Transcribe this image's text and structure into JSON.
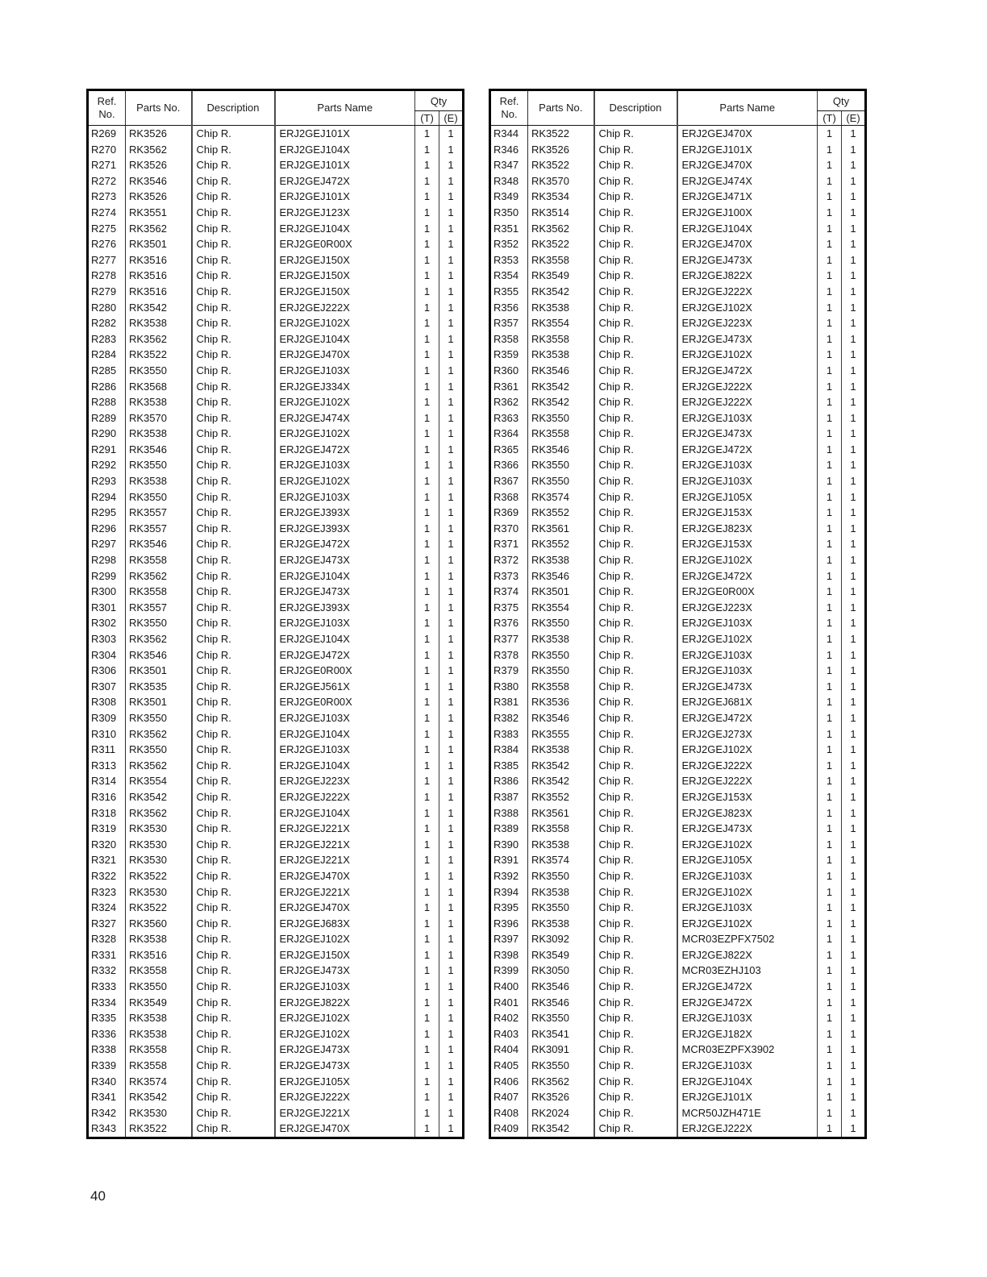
{
  "page": {
    "number": "40"
  },
  "headers": {
    "ref_line1": "Ref.",
    "ref_line2": "No.",
    "parts_no": "Parts No.",
    "description": "Description",
    "parts_name": "Parts Name",
    "qty": "Qty",
    "qty_t": "(T)",
    "qty_e": "(E)"
  },
  "tables": [
    {
      "rows": [
        [
          "R269",
          "RK3526",
          "Chip R.",
          "ERJ2GEJ101X",
          "1",
          "1"
        ],
        [
          "R270",
          "RK3562",
          "Chip R.",
          "ERJ2GEJ104X",
          "1",
          "1"
        ],
        [
          "R271",
          "RK3526",
          "Chip R.",
          "ERJ2GEJ101X",
          "1",
          "1"
        ],
        [
          "R272",
          "RK3546",
          "Chip R.",
          "ERJ2GEJ472X",
          "1",
          "1"
        ],
        [
          "R273",
          "RK3526",
          "Chip R.",
          "ERJ2GEJ101X",
          "1",
          "1"
        ],
        [
          "R274",
          "RK3551",
          "Chip R.",
          "ERJ2GEJ123X",
          "1",
          "1"
        ],
        [
          "R275",
          "RK3562",
          "Chip R.",
          "ERJ2GEJ104X",
          "1",
          "1"
        ],
        [
          "R276",
          "RK3501",
          "Chip R.",
          "ERJ2GE0R00X",
          "1",
          "1"
        ],
        [
          "R277",
          "RK3516",
          "Chip R.",
          "ERJ2GEJ150X",
          "1",
          "1"
        ],
        [
          "R278",
          "RK3516",
          "Chip R.",
          "ERJ2GEJ150X",
          "1",
          "1"
        ],
        [
          "R279",
          "RK3516",
          "Chip R.",
          "ERJ2GEJ150X",
          "1",
          "1"
        ],
        [
          "R280",
          "RK3542",
          "Chip R.",
          "ERJ2GEJ222X",
          "1",
          "1"
        ],
        [
          "R282",
          "RK3538",
          "Chip R.",
          "ERJ2GEJ102X",
          "1",
          "1"
        ],
        [
          "R283",
          "RK3562",
          "Chip R.",
          "ERJ2GEJ104X",
          "1",
          "1"
        ],
        [
          "R284",
          "RK3522",
          "Chip R.",
          "ERJ2GEJ470X",
          "1",
          "1"
        ],
        [
          "R285",
          "RK3550",
          "Chip R.",
          "ERJ2GEJ103X",
          "1",
          "1"
        ],
        [
          "R286",
          "RK3568",
          "Chip R.",
          "ERJ2GEJ334X",
          "1",
          "1"
        ],
        [
          "R288",
          "RK3538",
          "Chip R.",
          "ERJ2GEJ102X",
          "1",
          "1"
        ],
        [
          "R289",
          "RK3570",
          "Chip R.",
          "ERJ2GEJ474X",
          "1",
          "1"
        ],
        [
          "R290",
          "RK3538",
          "Chip R.",
          "ERJ2GEJ102X",
          "1",
          "1"
        ],
        [
          "R291",
          "RK3546",
          "Chip R.",
          "ERJ2GEJ472X",
          "1",
          "1"
        ],
        [
          "R292",
          "RK3550",
          "Chip R.",
          "ERJ2GEJ103X",
          "1",
          "1"
        ],
        [
          "R293",
          "RK3538",
          "Chip R.",
          "ERJ2GEJ102X",
          "1",
          "1"
        ],
        [
          "R294",
          "RK3550",
          "Chip R.",
          "ERJ2GEJ103X",
          "1",
          "1"
        ],
        [
          "R295",
          "RK3557",
          "Chip R.",
          "ERJ2GEJ393X",
          "1",
          "1"
        ],
        [
          "R296",
          "RK3557",
          "Chip R.",
          "ERJ2GEJ393X",
          "1",
          "1"
        ],
        [
          "R297",
          "RK3546",
          "Chip R.",
          "ERJ2GEJ472X",
          "1",
          "1"
        ],
        [
          "R298",
          "RK3558",
          "Chip R.",
          "ERJ2GEJ473X",
          "1",
          "1"
        ],
        [
          "R299",
          "RK3562",
          "Chip R.",
          "ERJ2GEJ104X",
          "1",
          "1"
        ],
        [
          "R300",
          "RK3558",
          "Chip R.",
          "ERJ2GEJ473X",
          "1",
          "1"
        ],
        [
          "R301",
          "RK3557",
          "Chip R.",
          "ERJ2GEJ393X",
          "1",
          "1"
        ],
        [
          "R302",
          "RK3550",
          "Chip R.",
          "ERJ2GEJ103X",
          "1",
          "1"
        ],
        [
          "R303",
          "RK3562",
          "Chip R.",
          "ERJ2GEJ104X",
          "1",
          "1"
        ],
        [
          "R304",
          "RK3546",
          "Chip R.",
          "ERJ2GEJ472X",
          "1",
          "1"
        ],
        [
          "R306",
          "RK3501",
          "Chip R.",
          "ERJ2GE0R00X",
          "1",
          "1"
        ],
        [
          "R307",
          "RK3535",
          "Chip R.",
          "ERJ2GEJ561X",
          "1",
          "1"
        ],
        [
          "R308",
          "RK3501",
          "Chip R.",
          "ERJ2GE0R00X",
          "1",
          "1"
        ],
        [
          "R309",
          "RK3550",
          "Chip R.",
          "ERJ2GEJ103X",
          "1",
          "1"
        ],
        [
          "R310",
          "RK3562",
          "Chip R.",
          "ERJ2GEJ104X",
          "1",
          "1"
        ],
        [
          "R311",
          "RK3550",
          "Chip R.",
          "ERJ2GEJ103X",
          "1",
          "1"
        ],
        [
          "R313",
          "RK3562",
          "Chip R.",
          "ERJ2GEJ104X",
          "1",
          "1"
        ],
        [
          "R314",
          "RK3554",
          "Chip R.",
          "ERJ2GEJ223X",
          "1",
          "1"
        ],
        [
          "R316",
          "RK3542",
          "Chip R.",
          "ERJ2GEJ222X",
          "1",
          "1"
        ],
        [
          "R318",
          "RK3562",
          "Chip R.",
          "ERJ2GEJ104X",
          "1",
          "1"
        ],
        [
          "R319",
          "RK3530",
          "Chip R.",
          "ERJ2GEJ221X",
          "1",
          "1"
        ],
        [
          "R320",
          "RK3530",
          "Chip R.",
          "ERJ2GEJ221X",
          "1",
          "1"
        ],
        [
          "R321",
          "RK3530",
          "Chip R.",
          "ERJ2GEJ221X",
          "1",
          "1"
        ],
        [
          "R322",
          "RK3522",
          "Chip R.",
          "ERJ2GEJ470X",
          "1",
          "1"
        ],
        [
          "R323",
          "RK3530",
          "Chip R.",
          "ERJ2GEJ221X",
          "1",
          "1"
        ],
        [
          "R324",
          "RK3522",
          "Chip R.",
          "ERJ2GEJ470X",
          "1",
          "1"
        ],
        [
          "R327",
          "RK3560",
          "Chip R.",
          "ERJ2GEJ683X",
          "1",
          "1"
        ],
        [
          "R328",
          "RK3538",
          "Chip R.",
          "ERJ2GEJ102X",
          "1",
          "1"
        ],
        [
          "R331",
          "RK3516",
          "Chip R.",
          "ERJ2GEJ150X",
          "1",
          "1"
        ],
        [
          "R332",
          "RK3558",
          "Chip R.",
          "ERJ2GEJ473X",
          "1",
          "1"
        ],
        [
          "R333",
          "RK3550",
          "Chip R.",
          "ERJ2GEJ103X",
          "1",
          "1"
        ],
        [
          "R334",
          "RK3549",
          "Chip R.",
          "ERJ2GEJ822X",
          "1",
          "1"
        ],
        [
          "R335",
          "RK3538",
          "Chip R.",
          "ERJ2GEJ102X",
          "1",
          "1"
        ],
        [
          "R336",
          "RK3538",
          "Chip R.",
          "ERJ2GEJ102X",
          "1",
          "1"
        ],
        [
          "R338",
          "RK3558",
          "Chip R.",
          "ERJ2GEJ473X",
          "1",
          "1"
        ],
        [
          "R339",
          "RK3558",
          "Chip R.",
          "ERJ2GEJ473X",
          "1",
          "1"
        ],
        [
          "R340",
          "RK3574",
          "Chip R.",
          "ERJ2GEJ105X",
          "1",
          "1"
        ],
        [
          "R341",
          "RK3542",
          "Chip R.",
          "ERJ2GEJ222X",
          "1",
          "1"
        ],
        [
          "R342",
          "RK3530",
          "Chip R.",
          "ERJ2GEJ221X",
          "1",
          "1"
        ],
        [
          "R343",
          "RK3522",
          "Chip R.",
          "ERJ2GEJ470X",
          "1",
          "1"
        ]
      ]
    },
    {
      "rows": [
        [
          "R344",
          "RK3522",
          "Chip R.",
          "ERJ2GEJ470X",
          "1",
          "1"
        ],
        [
          "R346",
          "RK3526",
          "Chip R.",
          "ERJ2GEJ101X",
          "1",
          "1"
        ],
        [
          "R347",
          "RK3522",
          "Chip R.",
          "ERJ2GEJ470X",
          "1",
          "1"
        ],
        [
          "R348",
          "RK3570",
          "Chip R.",
          "ERJ2GEJ474X",
          "1",
          "1"
        ],
        [
          "R349",
          "RK3534",
          "Chip R.",
          "ERJ2GEJ471X",
          "1",
          "1"
        ],
        [
          "R350",
          "RK3514",
          "Chip R.",
          "ERJ2GEJ100X",
          "1",
          "1"
        ],
        [
          "R351",
          "RK3562",
          "Chip R.",
          "ERJ2GEJ104X",
          "1",
          "1"
        ],
        [
          "R352",
          "RK3522",
          "Chip R.",
          "ERJ2GEJ470X",
          "1",
          "1"
        ],
        [
          "R353",
          "RK3558",
          "Chip R.",
          "ERJ2GEJ473X",
          "1",
          "1"
        ],
        [
          "R354",
          "RK3549",
          "Chip R.",
          "ERJ2GEJ822X",
          "1",
          "1"
        ],
        [
          "R355",
          "RK3542",
          "Chip R.",
          "ERJ2GEJ222X",
          "1",
          "1"
        ],
        [
          "R356",
          "RK3538",
          "Chip R.",
          "ERJ2GEJ102X",
          "1",
          "1"
        ],
        [
          "R357",
          "RK3554",
          "Chip R.",
          "ERJ2GEJ223X",
          "1",
          "1"
        ],
        [
          "R358",
          "RK3558",
          "Chip R.",
          "ERJ2GEJ473X",
          "1",
          "1"
        ],
        [
          "R359",
          "RK3538",
          "Chip R.",
          "ERJ2GEJ102X",
          "1",
          "1"
        ],
        [
          "R360",
          "RK3546",
          "Chip R.",
          "ERJ2GEJ472X",
          "1",
          "1"
        ],
        [
          "R361",
          "RK3542",
          "Chip R.",
          "ERJ2GEJ222X",
          "1",
          "1"
        ],
        [
          "R362",
          "RK3542",
          "Chip R.",
          "ERJ2GEJ222X",
          "1",
          "1"
        ],
        [
          "R363",
          "RK3550",
          "Chip R.",
          "ERJ2GEJ103X",
          "1",
          "1"
        ],
        [
          "R364",
          "RK3558",
          "Chip R.",
          "ERJ2GEJ473X",
          "1",
          "1"
        ],
        [
          "R365",
          "RK3546",
          "Chip R.",
          "ERJ2GEJ472X",
          "1",
          "1"
        ],
        [
          "R366",
          "RK3550",
          "Chip R.",
          "ERJ2GEJ103X",
          "1",
          "1"
        ],
        [
          "R367",
          "RK3550",
          "Chip R.",
          "ERJ2GEJ103X",
          "1",
          "1"
        ],
        [
          "R368",
          "RK3574",
          "Chip R.",
          "ERJ2GEJ105X",
          "1",
          "1"
        ],
        [
          "R369",
          "RK3552",
          "Chip R.",
          "ERJ2GEJ153X",
          "1",
          "1"
        ],
        [
          "R370",
          "RK3561",
          "Chip R.",
          "ERJ2GEJ823X",
          "1",
          "1"
        ],
        [
          "R371",
          "RK3552",
          "Chip R.",
          "ERJ2GEJ153X",
          "1",
          "1"
        ],
        [
          "R372",
          "RK3538",
          "Chip R.",
          "ERJ2GEJ102X",
          "1",
          "1"
        ],
        [
          "R373",
          "RK3546",
          "Chip R.",
          "ERJ2GEJ472X",
          "1",
          "1"
        ],
        [
          "R374",
          "RK3501",
          "Chip R.",
          "ERJ2GE0R00X",
          "1",
          "1"
        ],
        [
          "R375",
          "RK3554",
          "Chip R.",
          "ERJ2GEJ223X",
          "1",
          "1"
        ],
        [
          "R376",
          "RK3550",
          "Chip R.",
          "ERJ2GEJ103X",
          "1",
          "1"
        ],
        [
          "R377",
          "RK3538",
          "Chip R.",
          "ERJ2GEJ102X",
          "1",
          "1"
        ],
        [
          "R378",
          "RK3550",
          "Chip R.",
          "ERJ2GEJ103X",
          "1",
          "1"
        ],
        [
          "R379",
          "RK3550",
          "Chip R.",
          "ERJ2GEJ103X",
          "1",
          "1"
        ],
        [
          "R380",
          "RK3558",
          "Chip R.",
          "ERJ2GEJ473X",
          "1",
          "1"
        ],
        [
          "R381",
          "RK3536",
          "Chip R.",
          "ERJ2GEJ681X",
          "1",
          "1"
        ],
        [
          "R382",
          "RK3546",
          "Chip R.",
          "ERJ2GEJ472X",
          "1",
          "1"
        ],
        [
          "R383",
          "RK3555",
          "Chip R.",
          "ERJ2GEJ273X",
          "1",
          "1"
        ],
        [
          "R384",
          "RK3538",
          "Chip R.",
          "ERJ2GEJ102X",
          "1",
          "1"
        ],
        [
          "R385",
          "RK3542",
          "Chip R.",
          "ERJ2GEJ222X",
          "1",
          "1"
        ],
        [
          "R386",
          "RK3542",
          "Chip R.",
          "ERJ2GEJ222X",
          "1",
          "1"
        ],
        [
          "R387",
          "RK3552",
          "Chip R.",
          "ERJ2GEJ153X",
          "1",
          "1"
        ],
        [
          "R388",
          "RK3561",
          "Chip R.",
          "ERJ2GEJ823X",
          "1",
          "1"
        ],
        [
          "R389",
          "RK3558",
          "Chip R.",
          "ERJ2GEJ473X",
          "1",
          "1"
        ],
        [
          "R390",
          "RK3538",
          "Chip R.",
          "ERJ2GEJ102X",
          "1",
          "1"
        ],
        [
          "R391",
          "RK3574",
          "Chip R.",
          "ERJ2GEJ105X",
          "1",
          "1"
        ],
        [
          "R392",
          "RK3550",
          "Chip R.",
          "ERJ2GEJ103X",
          "1",
          "1"
        ],
        [
          "R394",
          "RK3538",
          "Chip R.",
          "ERJ2GEJ102X",
          "1",
          "1"
        ],
        [
          "R395",
          "RK3550",
          "Chip R.",
          "ERJ2GEJ103X",
          "1",
          "1"
        ],
        [
          "R396",
          "RK3538",
          "Chip R.",
          "ERJ2GEJ102X",
          "1",
          "1"
        ],
        [
          "R397",
          "RK3092",
          "Chip R.",
          "MCR03EZPFX7502",
          "1",
          "1"
        ],
        [
          "R398",
          "RK3549",
          "Chip R.",
          "ERJ2GEJ822X",
          "1",
          "1"
        ],
        [
          "R399",
          "RK3050",
          "Chip R.",
          "MCR03EZHJ103",
          "1",
          "1"
        ],
        [
          "R400",
          "RK3546",
          "Chip R.",
          "ERJ2GEJ472X",
          "1",
          "1"
        ],
        [
          "R401",
          "RK3546",
          "Chip R.",
          "ERJ2GEJ472X",
          "1",
          "1"
        ],
        [
          "R402",
          "RK3550",
          "Chip R.",
          "ERJ2GEJ103X",
          "1",
          "1"
        ],
        [
          "R403",
          "RK3541",
          "Chip R.",
          "ERJ2GEJ182X",
          "1",
          "1"
        ],
        [
          "R404",
          "RK3091",
          "Chip R.",
          "MCR03EZPFX3902",
          "1",
          "1"
        ],
        [
          "R405",
          "RK3550",
          "Chip R.",
          "ERJ2GEJ103X",
          "1",
          "1"
        ],
        [
          "R406",
          "RK3562",
          "Chip R.",
          "ERJ2GEJ104X",
          "1",
          "1"
        ],
        [
          "R407",
          "RK3526",
          "Chip R.",
          "ERJ2GEJ101X",
          "1",
          "1"
        ],
        [
          "R408",
          "RK2024",
          "Chip R.",
          "MCR50JZH471E",
          "1",
          "1"
        ],
        [
          "R409",
          "RK3542",
          "Chip R.",
          "ERJ2GEJ222X",
          "1",
          "1"
        ]
      ]
    }
  ]
}
